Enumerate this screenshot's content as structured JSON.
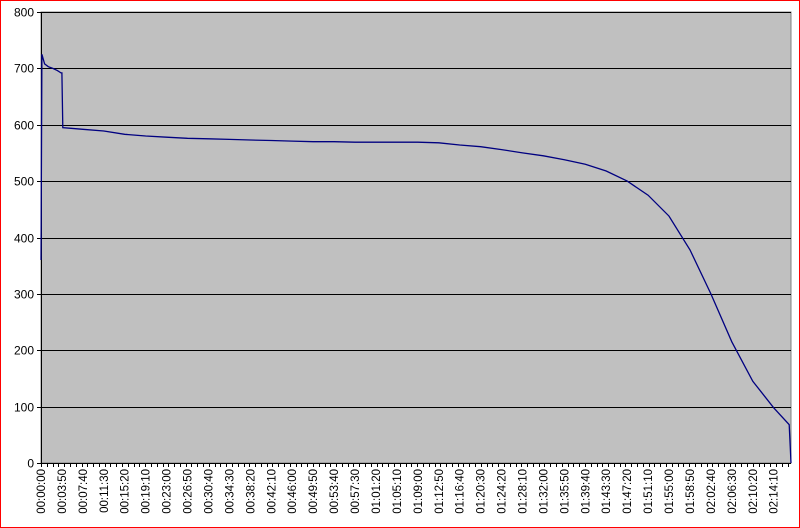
{
  "chart_data": {
    "type": "line",
    "title": "",
    "xlabel": "",
    "ylabel": "",
    "ylim": [
      0,
      800
    ],
    "yticks": [
      "0",
      "100",
      "200",
      "300",
      "400",
      "500",
      "600",
      "700",
      "800"
    ],
    "x_tick_labels": [
      "00:00:00",
      "00:03:50",
      "00:07:40",
      "00:11:30",
      "00:15:20",
      "00:19:10",
      "00:23:00",
      "00:26:50",
      "00:30:40",
      "00:34:30",
      "00:38:20",
      "00:42:10",
      "00:46:00",
      "00:49:50",
      "00:53:40",
      "00:57:30",
      "01:01:20",
      "01:05:10",
      "01:09:00",
      "01:12:50",
      "01:16:40",
      "01:20:30",
      "01:24:20",
      "01:28:10",
      "01:32:00",
      "01:35:50",
      "01:39:40",
      "01:43:30",
      "01:47:20",
      "01:51:10",
      "01:55:00",
      "01:58:50",
      "02:02:40",
      "02:06:30",
      "02:10:20",
      "02:14:10"
    ],
    "grid": "horizontal",
    "legend": "none",
    "colors": {
      "line": "#000080",
      "plot_background": "#c0c0c0",
      "gridline": "#000000",
      "frame": "#ff0000"
    },
    "series": [
      {
        "values_x_y": [
          [
            "00:00:00",
            360
          ],
          [
            "00:00:10",
            725
          ],
          [
            "00:00:40",
            708
          ],
          [
            "00:01:20",
            703
          ],
          [
            "00:02:10",
            700
          ],
          [
            "00:03:00",
            696
          ],
          [
            "00:03:40",
            692
          ],
          [
            "00:03:50",
            692
          ],
          [
            "00:04:00",
            595
          ],
          [
            "00:07:40",
            592
          ],
          [
            "00:11:30",
            589
          ],
          [
            "00:15:20",
            583
          ],
          [
            "00:19:10",
            580
          ],
          [
            "00:23:00",
            578
          ],
          [
            "00:26:50",
            576
          ],
          [
            "00:30:40",
            575
          ],
          [
            "00:34:30",
            574
          ],
          [
            "00:38:20",
            573
          ],
          [
            "00:42:10",
            572
          ],
          [
            "00:46:00",
            571
          ],
          [
            "00:49:50",
            570
          ],
          [
            "00:53:40",
            570
          ],
          [
            "00:57:30",
            569
          ],
          [
            "01:01:20",
            569
          ],
          [
            "01:05:10",
            569
          ],
          [
            "01:09:00",
            569
          ],
          [
            "01:12:50",
            568
          ],
          [
            "01:16:40",
            564
          ],
          [
            "01:20:30",
            561
          ],
          [
            "01:24:20",
            556
          ],
          [
            "01:28:10",
            550
          ],
          [
            "01:32:00",
            545
          ],
          [
            "01:35:50",
            538
          ],
          [
            "01:39:40",
            530
          ],
          [
            "01:43:30",
            518
          ],
          [
            "01:47:20",
            500
          ],
          [
            "01:51:10",
            475
          ],
          [
            "01:55:00",
            438
          ],
          [
            "01:58:50",
            378
          ],
          [
            "02:02:40",
            300
          ],
          [
            "02:06:30",
            215
          ],
          [
            "02:10:20",
            145
          ],
          [
            "02:14:10",
            98
          ],
          [
            "02:17:00",
            68
          ],
          [
            "02:17:20",
            0
          ]
        ]
      }
    ]
  }
}
